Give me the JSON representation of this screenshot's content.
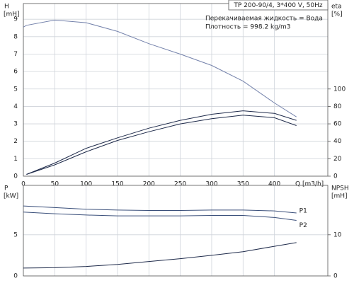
{
  "chart_data": [
    {
      "type": "line",
      "info_box": "TP 200-90/4, 3*400 V, 50Hz",
      "annotations": [
        "Перекачиваемая жидкость = Вода",
        "Плотность = 998.2 kg/m3"
      ],
      "ylabel": "H",
      "yunit": "[mH]",
      "y2label": "eta",
      "y2unit": "[%]",
      "xlabel": "Q [m3/h]",
      "x": [
        0,
        5,
        50,
        100,
        150,
        200,
        250,
        300,
        350,
        400,
        435
      ],
      "series": [
        {
          "color": "#7482ab",
          "values": [
            8.55,
            8.65,
            8.95,
            8.8,
            8.3,
            7.6,
            7.0,
            6.35,
            5.45,
            4.2,
            3.4
          ]
        },
        {
          "color": "#1e2a4a",
          "axis": "y2",
          "values": [
            null,
            2,
            15,
            32,
            44,
            55,
            64,
            71,
            75,
            72,
            64
          ]
        },
        {
          "color": "#1e2a4a",
          "axis": "y2",
          "values": [
            null,
            2,
            13,
            28,
            41,
            51,
            60,
            66,
            70,
            67,
            58
          ]
        }
      ],
      "xlim": [
        0,
        485
      ],
      "xticks": [
        0,
        50,
        100,
        150,
        200,
        250,
        300,
        350,
        400
      ],
      "show_xtick_labels": true,
      "ylim": [
        0,
        9.9
      ],
      "yticks": [
        0,
        1,
        2,
        3,
        4,
        5,
        6,
        7,
        8,
        9
      ],
      "y2lim": [
        0,
        198
      ],
      "y2ticks": [
        0,
        20,
        40,
        60,
        80,
        100
      ],
      "grid": true
    },
    {
      "type": "line",
      "ylabel": "P",
      "yunit": "[kW]",
      "y2label": "NPSH",
      "y2unit": "[mH]",
      "x": [
        0,
        50,
        100,
        150,
        200,
        250,
        300,
        350,
        400,
        435
      ],
      "series": [
        {
          "name": "P1",
          "color": "#3a4f7a",
          "values": [
            8.5,
            8.3,
            8.1,
            8.0,
            7.95,
            7.95,
            8.0,
            8.0,
            7.9,
            7.65
          ]
        },
        {
          "name": "P2",
          "color": "#3a4f7a",
          "values": [
            7.75,
            7.55,
            7.4,
            7.3,
            7.3,
            7.3,
            7.35,
            7.35,
            7.1,
            6.75
          ]
        },
        {
          "color": "#1e2a4a",
          "axis": "y2",
          "values": [
            1.9,
            2.0,
            2.3,
            2.8,
            3.5,
            4.2,
            5.0,
            5.9,
            7.2,
            8.1
          ]
        }
      ],
      "xlim": [
        0,
        485
      ],
      "xticks": [
        0,
        50,
        100,
        150,
        200,
        250,
        300,
        350,
        400
      ],
      "show_xtick_labels": false,
      "ylim": [
        0,
        11
      ],
      "yticks": [
        0,
        5
      ],
      "y2lim": [
        0,
        22
      ],
      "y2ticks": [
        0,
        10
      ],
      "grid": true
    }
  ]
}
